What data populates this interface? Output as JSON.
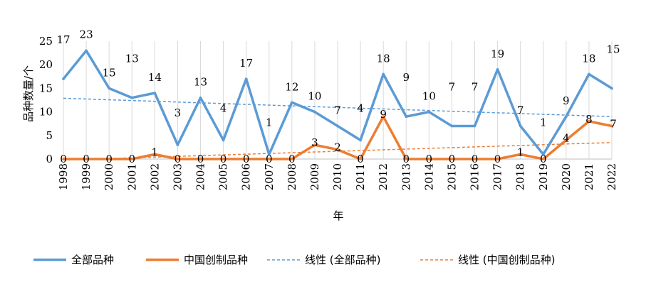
{
  "chart_data": {
    "type": "line",
    "xlabel": "年",
    "ylabel": "品种数量/个",
    "ylim": [
      0,
      25
    ],
    "yticks": [
      "0",
      "5",
      "10",
      "15",
      "20",
      "25"
    ],
    "categories": [
      "1998",
      "1999",
      "2000",
      "2001",
      "2002",
      "2003",
      "2004",
      "2005",
      "2006",
      "2007",
      "2008",
      "2009",
      "2010",
      "2011",
      "2012",
      "2013",
      "2014",
      "2015",
      "2016",
      "2017",
      "2018",
      "2019",
      "2020",
      "2021",
      "2022"
    ],
    "series": [
      {
        "name": "全部品种",
        "color": "#5b9bd5",
        "values": [
          17,
          23,
          15,
          13,
          14,
          3,
          13,
          4,
          17,
          1,
          12,
          10,
          7,
          4,
          18,
          9,
          10,
          7,
          7,
          19,
          7,
          1,
          9,
          18,
          15
        ]
      },
      {
        "name": "中国创制品种",
        "color": "#ed7d31",
        "values": [
          0,
          0,
          0,
          0,
          1,
          0,
          0,
          0,
          0,
          0,
          0,
          3,
          2,
          0,
          9,
          0,
          0,
          0,
          0,
          0,
          1,
          0,
          4,
          8,
          7
        ]
      }
    ],
    "trendlines": [
      {
        "name": "线性 (全部品种)",
        "color": "#5b9bd5",
        "start": 12.9,
        "end": 9.0
      },
      {
        "name": "线性 (中国创制品种)",
        "color": "#ed7d31",
        "start": -0.2,
        "end": 3.5
      }
    ],
    "grid": "vertical",
    "legend": "bottom"
  }
}
